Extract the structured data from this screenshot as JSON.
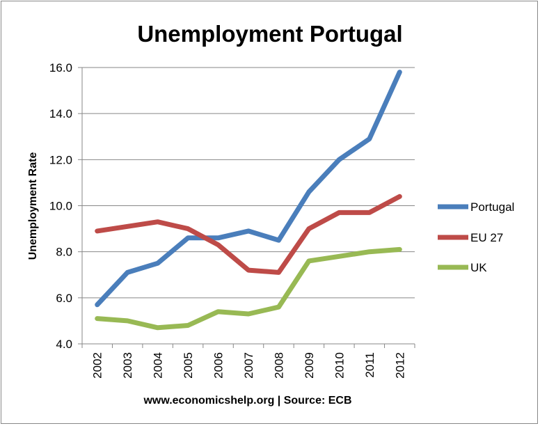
{
  "chart_data": {
    "type": "line",
    "title": "Unemployment Portugal",
    "xlabel": "www.economicshelp.org | Source: ECB",
    "ylabel": "Unemployment Rate",
    "x": [
      "2002",
      "2003",
      "2004",
      "2005",
      "2006",
      "2007",
      "2008",
      "2009",
      "2010",
      "2011",
      "2012"
    ],
    "ylim": [
      4.0,
      16.0
    ],
    "yticks": [
      "4.0",
      "6.0",
      "8.0",
      "10.0",
      "12.0",
      "14.0",
      "16.0"
    ],
    "grid": "horizontal",
    "legend": "right",
    "series": [
      {
        "name": "Portugal",
        "color": "#4a7ebb",
        "values": [
          5.7,
          7.1,
          7.5,
          8.6,
          8.6,
          8.9,
          8.5,
          10.6,
          12.0,
          12.9,
          15.8
        ]
      },
      {
        "name": "EU 27",
        "color": "#be4b48",
        "values": [
          8.9,
          9.1,
          9.3,
          9.0,
          8.3,
          7.2,
          7.1,
          9.0,
          9.7,
          9.7,
          10.4
        ]
      },
      {
        "name": "UK",
        "color": "#98b954",
        "values": [
          5.1,
          5.0,
          4.7,
          4.8,
          5.4,
          5.3,
          5.6,
          7.6,
          7.8,
          8.0,
          8.1
        ]
      }
    ]
  }
}
